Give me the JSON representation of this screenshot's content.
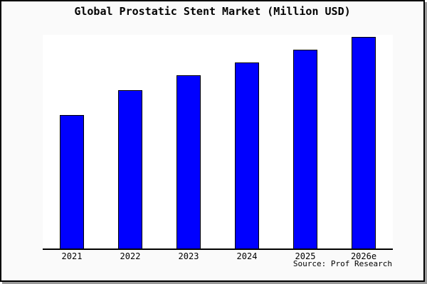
{
  "chart_data": {
    "type": "bar",
    "title": "Global Prostatic Stent Market (Million USD)",
    "categories": [
      "2021",
      "2022",
      "2023",
      "2024",
      "2025",
      "2026e"
    ],
    "values": [
      63,
      75,
      82,
      88,
      94,
      100
    ],
    "value_note": "no y-axis scale or data labels shown; values are relative bar heights with 2026e = 100",
    "xlabel": "",
    "ylabel": "",
    "ylim": [
      0,
      101
    ],
    "grid": false,
    "legend": false,
    "source_label": "Source: Prof Research",
    "colors": {
      "bar_fill": "#0000ff",
      "bar_edge": "#000000",
      "axis_line": "#000000",
      "plot_background": "#ffffff",
      "figure_background": "#fafafa",
      "frame_border": "#000000",
      "frame_shadow": "#9a9a9a",
      "text": "#000000"
    }
  }
}
